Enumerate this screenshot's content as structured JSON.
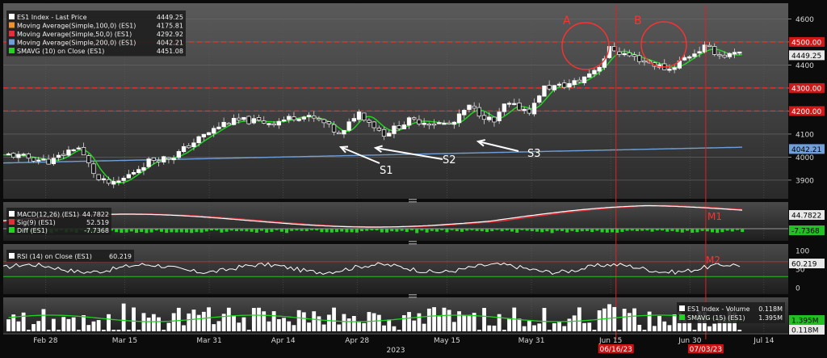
{
  "chart_data": {
    "type": "line",
    "colors": {
      "price": "#ffffff",
      "ma100": "#f0922b",
      "ma50": "#e0303a",
      "ma200": "#6fa0dc",
      "smavg": "#22d322",
      "level_line": "#ff2a2a",
      "annotation": "#ffffff",
      "circle": "#ff3030",
      "volume": "#ffffff"
    },
    "price_panel": {
      "legend": [
        {
          "label": "ES1 Index - Last Price",
          "value": "4449.25",
          "color": "#ffffff"
        },
        {
          "label": "Moving Average(Simple,100,0)  (ES1)",
          "value": "4175.81",
          "color": "#f0922b"
        },
        {
          "label": "Moving Average(Simple,50,0)  (ES1)",
          "value": "4292.92",
          "color": "#e0303a"
        },
        {
          "label": "Moving Average(Simple,200,0)  (ES1)",
          "value": "4042.21",
          "color": "#6fa0dc"
        },
        {
          "label": "SMAVG (10)  on Close (ES1)",
          "value": "4451.08",
          "color": "#22d322"
        }
      ],
      "y_ticks": [
        3900,
        4000,
        4100,
        4200,
        4300,
        4400,
        4500,
        4600
      ],
      "ylim": [
        3840,
        4640
      ],
      "levels": [
        4500,
        4300,
        4200
      ],
      "level_labels": [
        "4500.00",
        "4300.00",
        "4200.00"
      ],
      "ohlc_approx": [
        {
          "date": "2023-02-21",
          "close": 4010
        },
        {
          "date": "2023-02-24",
          "close": 4000
        },
        {
          "date": "2023-03-01",
          "close": 3980
        },
        {
          "date": "2023-03-06",
          "close": 4050
        },
        {
          "date": "2023-03-10",
          "close": 3900
        },
        {
          "date": "2023-03-13",
          "close": 3880
        },
        {
          "date": "2023-03-15",
          "close": 3910
        },
        {
          "date": "2023-03-20",
          "close": 3990
        },
        {
          "date": "2023-03-24",
          "close": 4000
        },
        {
          "date": "2023-03-29",
          "close": 4080
        },
        {
          "date": "2023-04-03",
          "close": 4150
        },
        {
          "date": "2023-04-06",
          "close": 4160
        },
        {
          "date": "2023-04-12",
          "close": 4150
        },
        {
          "date": "2023-04-17",
          "close": 4180
        },
        {
          "date": "2023-04-21",
          "close": 4160
        },
        {
          "date": "2023-04-25",
          "close": 4090
        },
        {
          "date": "2023-04-28",
          "close": 4200
        },
        {
          "date": "2023-05-03",
          "close": 4100
        },
        {
          "date": "2023-05-08",
          "close": 4160
        },
        {
          "date": "2023-05-12",
          "close": 4150
        },
        {
          "date": "2023-05-16",
          "close": 4140
        },
        {
          "date": "2023-05-19",
          "close": 4220
        },
        {
          "date": "2023-05-24",
          "close": 4150
        },
        {
          "date": "2023-05-26",
          "close": 4230
        },
        {
          "date": "2023-05-31",
          "close": 4200
        },
        {
          "date": "2023-06-02",
          "close": 4300
        },
        {
          "date": "2023-06-06",
          "close": 4310
        },
        {
          "date": "2023-06-09",
          "close": 4330
        },
        {
          "date": "2023-06-13",
          "close": 4400
        },
        {
          "date": "2023-06-15",
          "close": 4480
        },
        {
          "date": "2023-06-16",
          "close": 4460
        },
        {
          "date": "2023-06-21",
          "close": 4420
        },
        {
          "date": "2023-06-26",
          "close": 4380
        },
        {
          "date": "2023-06-29",
          "close": 4430
        },
        {
          "date": "2023-07-03",
          "close": 4480
        },
        {
          "date": "2023-07-06",
          "close": 4440
        },
        {
          "date": "2023-07-10",
          "close": 4449
        }
      ],
      "annotations": [
        {
          "label": "S1"
        },
        {
          "label": "S2"
        },
        {
          "label": "S3"
        },
        {
          "label": "A"
        },
        {
          "label": "B"
        }
      ],
      "right_labels": [
        "4449.25",
        "4042.21"
      ]
    },
    "macd_panel": {
      "legend": [
        {
          "label": "MACD(12,26)  (ES1)",
          "value": "44.7822",
          "color": "#ffffff"
        },
        {
          "label": "Sig(9)  (ES1)",
          "value": "52.519",
          "color": "#e0303a"
        },
        {
          "label": "Diff  (ES1)",
          "value": "-7.7368",
          "color": "#22d322"
        }
      ],
      "right_labels": [
        "44.7822",
        "-7.7368"
      ],
      "annotation": "M1"
    },
    "rsi_panel": {
      "legend": [
        {
          "label": "RSI (14)  on Close (ES1)",
          "value": "60.219",
          "color": "#ffffff"
        }
      ],
      "y_ticks": [
        "100",
        "50",
        "0"
      ],
      "right_labels": [
        "60.219"
      ],
      "annotation": "M2",
      "levels": [
        70,
        30
      ]
    },
    "volume_panel": {
      "legend": [
        {
          "label": "ES1 Index - Volume",
          "value": "0.118M",
          "color": "#ffffff"
        },
        {
          "label": "SMAVG (15)  (ES1)",
          "value": "1.395M",
          "color": "#22d322"
        }
      ],
      "right_labels": [
        "1.395M",
        "0.118M"
      ]
    },
    "x_axis": {
      "ticks": [
        "Feb 28",
        "Mar 15",
        "Mar 31",
        "Apr 14",
        "Apr 28",
        "May 15",
        "May 31",
        "Jun 15",
        "Jun 30",
        "Jul 14"
      ],
      "year_label": "2023",
      "highlight_dates": [
        "06/16/23",
        "07/03/23"
      ]
    }
  }
}
